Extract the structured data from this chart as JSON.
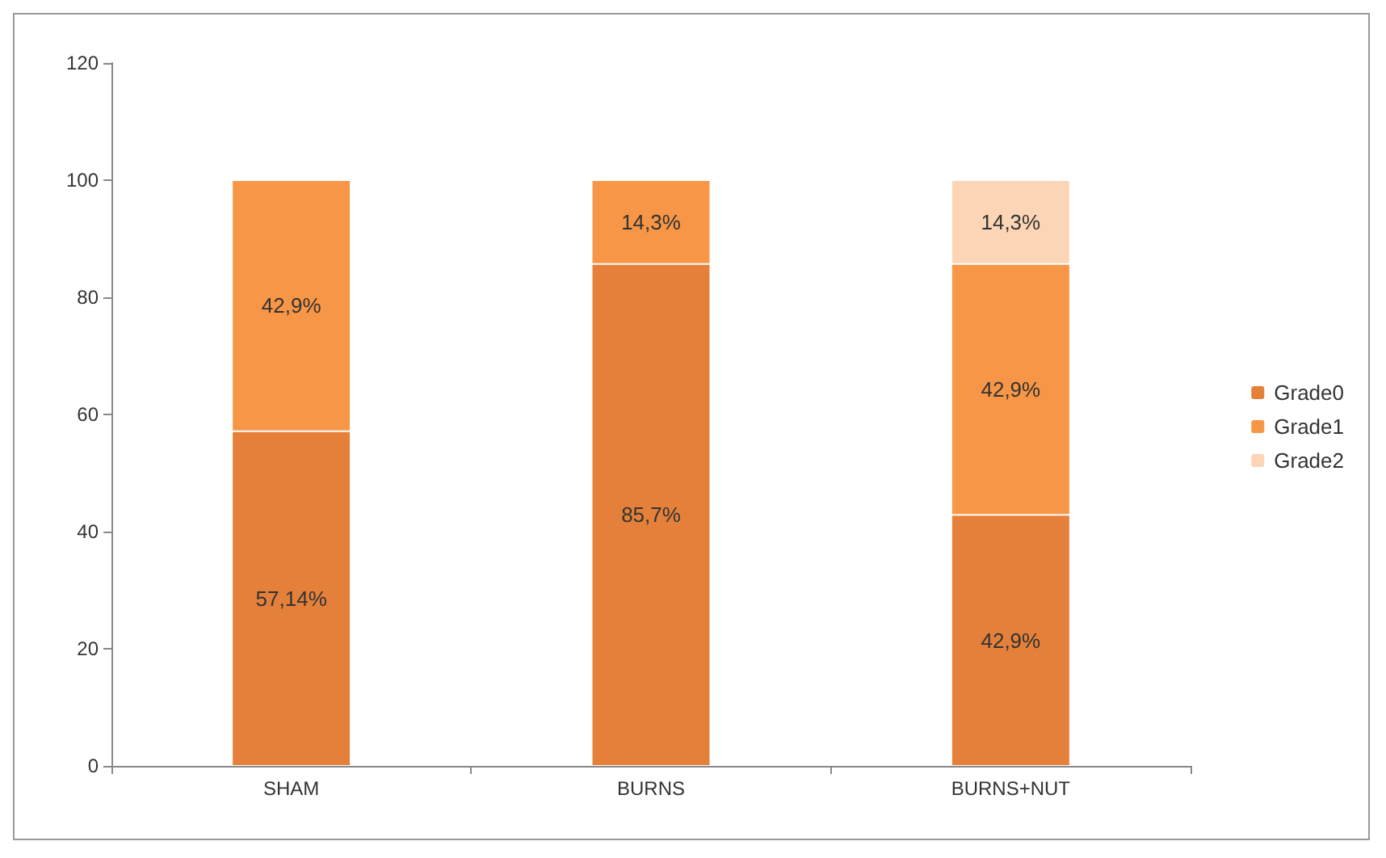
{
  "chart_data": {
    "type": "bar",
    "stacked": true,
    "categories": [
      "SHAM",
      "BURNS",
      "BURNS+NUT"
    ],
    "series": [
      {
        "name": "Grade0",
        "color": "#e4803a",
        "values": [
          57.14,
          85.7,
          42.85
        ],
        "value_labels": [
          "57,14%",
          "85,7%",
          "42,9%"
        ]
      },
      {
        "name": "Grade1",
        "color": "#f79646",
        "values": [
          42.86,
          14.3,
          42.85
        ],
        "value_labels": [
          "42,9%",
          "14,3%",
          "42,9%"
        ]
      },
      {
        "name": "Grade2",
        "color": "#fbd5b5",
        "values": [
          null,
          null,
          14.3
        ],
        "value_labels": [
          null,
          null,
          "14,3%"
        ]
      }
    ],
    "ylim": [
      0,
      120
    ],
    "yticks": [
      0,
      20,
      40,
      60,
      80,
      100,
      120
    ],
    "grid": false,
    "legend": "right"
  }
}
